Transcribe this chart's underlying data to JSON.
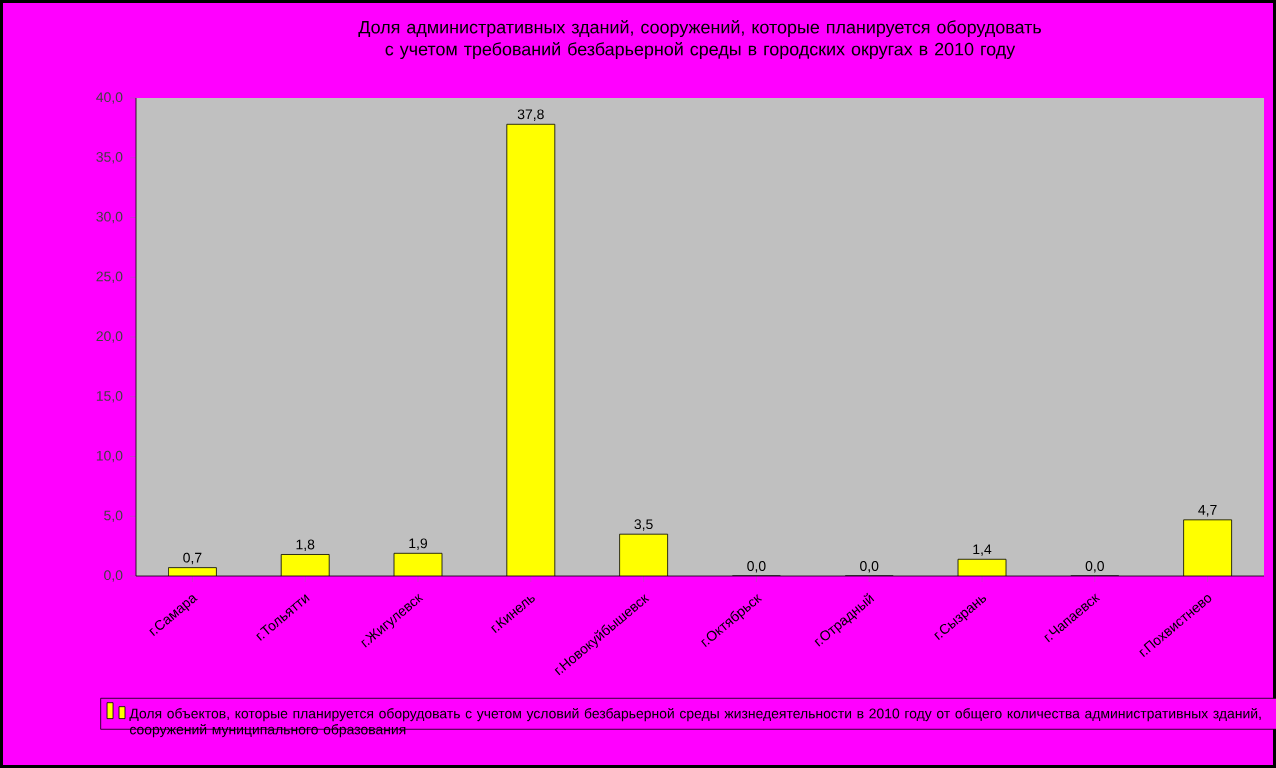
{
  "chart_data": {
    "type": "bar",
    "title": "Доля административных зданий, сооружений, которые планируется оборудовать с учетом требований безбарьерной среды в городских округах в 2010 году",
    "categories": [
      "г.Самара",
      "г.Тольятти",
      "г.Жигулевск",
      "г.Кинель",
      "г.Новокуйбышевск",
      "г.Октябрьск",
      "г.Отрадный",
      "г.Сызрань",
      "г.Чапаевск",
      "г.Похвистнево"
    ],
    "series": [
      {
        "name": "Доля объектов, которые планируется оборудовать с учетом условий безбарьерной среды жизнедеятельности в 2010 году от общего количества административных зданий, сооружений муниципального образования",
        "color": "#ffff00",
        "values": [
          0.7,
          1.8,
          1.9,
          37.8,
          3.5,
          0.0,
          0.0,
          1.4,
          0.0,
          4.7
        ],
        "value_labels": [
          "0,7",
          "1,8",
          "1,9",
          "37,8",
          "3,5",
          "0,0",
          "0,0",
          "1,4",
          "0,0",
          "4,7"
        ]
      }
    ],
    "ylim": [
      0,
      40
    ],
    "yticks": [
      {
        "value": 0,
        "label": "0,0"
      },
      {
        "value": 5,
        "label": "5,0"
      },
      {
        "value": 10,
        "label": "10,0"
      },
      {
        "value": 15,
        "label": "15,0"
      },
      {
        "value": 20,
        "label": "20,0"
      },
      {
        "value": 25,
        "label": "25,0"
      },
      {
        "value": 30,
        "label": "30,0"
      },
      {
        "value": 35,
        "label": "35,0"
      },
      {
        "value": 40,
        "label": "40,0"
      }
    ],
    "legend": "bottom"
  }
}
